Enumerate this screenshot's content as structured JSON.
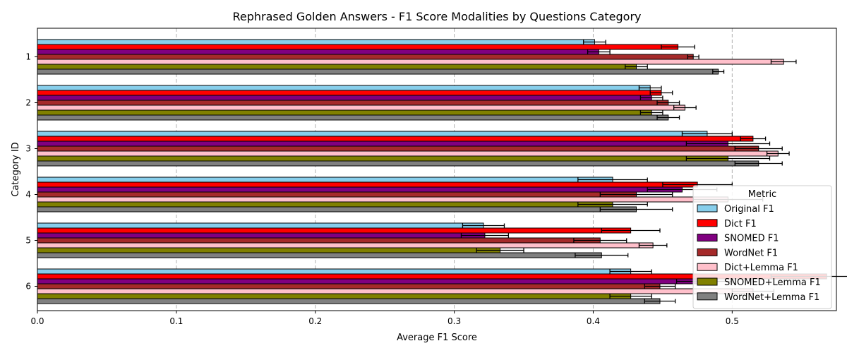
{
  "chart_data": {
    "type": "bar",
    "orientation": "horizontal",
    "title": "Rephrased Golden Answers - F1 Score Modalities by Questions Category",
    "xlabel": "Average F1 Score",
    "ylabel": "Category ID",
    "xlim": [
      0,
      0.575
    ],
    "xticks": [
      "0.0",
      "0.1",
      "0.2",
      "0.3",
      "0.4",
      "0.5"
    ],
    "categories": [
      "1",
      "2",
      "3",
      "4",
      "5",
      "6"
    ],
    "grid": "vertical dashed",
    "legend_title": "Metric",
    "legend_position": "lower right",
    "series": [
      {
        "name": "Original F1",
        "color": "#87ceeb",
        "values": [
          0.401,
          0.441,
          0.482,
          0.414,
          0.321,
          0.427
        ],
        "errors": [
          0.008,
          0.008,
          0.018,
          0.025,
          0.015,
          0.015
        ]
      },
      {
        "name": "Dict F1",
        "color": "#ff0000",
        "values": [
          0.461,
          0.449,
          0.515,
          0.475,
          0.427,
          0.568
        ],
        "errors": [
          0.012,
          0.008,
          0.009,
          0.025,
          0.021,
          0.04
        ]
      },
      {
        "name": "SNOMED F1",
        "color": "#800080",
        "values": [
          0.404,
          0.442,
          0.497,
          0.464,
          0.322,
          0.48
        ],
        "errors": [
          0.008,
          0.008,
          0.03,
          0.025,
          0.017,
          0.02
        ]
      },
      {
        "name": "WordNet F1",
        "color": "#a52a2a",
        "values": [
          0.472,
          0.454,
          0.519,
          0.431,
          0.405,
          0.448
        ],
        "errors": [
          0.004,
          0.008,
          0.017,
          0.026,
          0.019,
          0.011
        ]
      },
      {
        "name": "Dict+Lemma F1",
        "color": "#ffc0cb",
        "values": [
          0.537,
          0.466,
          0.533,
          0.497,
          0.443,
          0.515
        ],
        "errors": [
          0.009,
          0.008,
          0.008,
          0.025,
          0.01,
          0.015
        ]
      },
      {
        "name": "SNOMED+Lemma F1",
        "color": "#808000",
        "values": [
          0.431,
          0.442,
          0.497,
          0.414,
          0.333,
          0.427
        ],
        "errors": [
          0.008,
          0.008,
          0.03,
          0.025,
          0.017,
          0.015
        ]
      },
      {
        "name": "WordNet+Lemma F1",
        "color": "#808080",
        "values": [
          0.49,
          0.454,
          0.519,
          0.431,
          0.406,
          0.448
        ],
        "errors": [
          0.004,
          0.008,
          0.017,
          0.026,
          0.019,
          0.011
        ]
      }
    ]
  }
}
